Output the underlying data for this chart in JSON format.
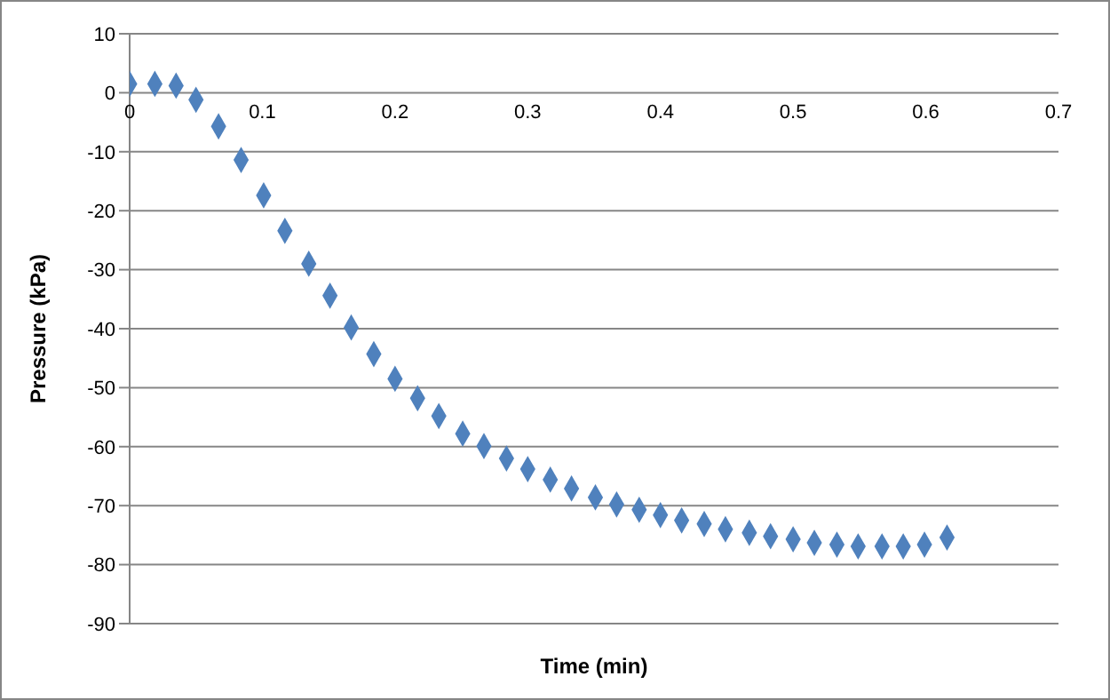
{
  "chart_data": {
    "type": "scatter",
    "xlabel": "Time (min)",
    "ylabel": "Pressure (kPa)",
    "xlim": [
      0,
      0.7
    ],
    "xticks": [
      0,
      0.1,
      0.2,
      0.3,
      0.4,
      0.5,
      0.6,
      0.7
    ],
    "ylim": [
      -90,
      10
    ],
    "yticks": [
      -90,
      -80,
      -70,
      -60,
      -50,
      -40,
      -30,
      -20,
      -10,
      0,
      10
    ],
    "grid": "y",
    "marker": "diamond",
    "x": [
      0,
      0.019,
      0.035,
      0.05,
      0.067,
      0.084,
      0.101,
      0.117,
      0.135,
      0.151,
      0.167,
      0.184,
      0.2,
      0.217,
      0.233,
      0.251,
      0.267,
      0.284,
      0.3,
      0.317,
      0.333,
      0.351,
      0.367,
      0.384,
      0.4,
      0.416,
      0.433,
      0.449,
      0.467,
      0.483,
      0.5,
      0.516,
      0.533,
      0.549,
      0.567,
      0.583,
      0.599,
      0.616
    ],
    "series": [
      {
        "color": "#4f81bd",
        "values": [
          1.5,
          1.5,
          1.2,
          -1.2,
          -5.7,
          -11.4,
          -17.4,
          -23.4,
          -29,
          -34.4,
          -39.8,
          -44.3,
          -48.5,
          -51.8,
          -54.8,
          -57.8,
          -59.9,
          -62,
          -63.8,
          -65.6,
          -67.1,
          -68.6,
          -69.8,
          -70.7,
          -71.6,
          -72.5,
          -73.1,
          -74,
          -74.6,
          -75.2,
          -75.7,
          -76.3,
          -76.6,
          -76.9,
          -76.9,
          -76.9,
          -76.6,
          -75.4
        ]
      }
    ]
  }
}
